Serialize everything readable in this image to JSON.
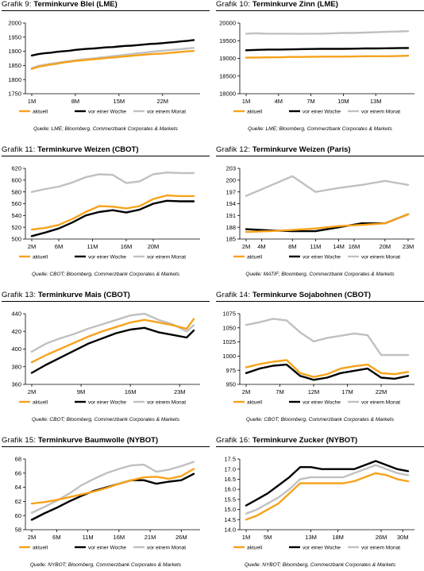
{
  "legend": {
    "current": "aktuell",
    "week": "vor einer Woche",
    "month": "vor einem Monat"
  },
  "colors": {
    "current": "#F7A21B",
    "week": "#000000",
    "month": "#C0C0C0"
  },
  "panels": [
    {
      "prefix": "Grafik 9:",
      "name": "Terminkurve Blei (LME)",
      "source": "Quelle: LME; Bloomberg, Commerzbank Corporates & Markets"
    },
    {
      "prefix": "Grafik 10:",
      "name": "Terminkurve Zinn (LME)",
      "source": "Quelle: LME; Bloomberg, Commerzbank Corporates & Markets"
    },
    {
      "prefix": "Grafik 11:",
      "name": "Terminkurve Weizen (CBOT)",
      "source": "Quelle: CBOT; Bloomberg, Commerzbank Corporates & Markets"
    },
    {
      "prefix": "Grafik 12:",
      "name": "Terminkurve Weizen (Paris)",
      "source": "Quelle: MATIF; Bloomberg, Commerzbank Corporates & Markets"
    },
    {
      "prefix": "Grafik 13:",
      "name": "Terminkurve Mais (CBOT)",
      "source": "Quelle: CBOT; Bloomberg, Commerzbank Corporates & Markets"
    },
    {
      "prefix": "Grafik 14:",
      "name": "Terminkurve Sojabohnen (CBOT)",
      "source": "Quelle: CBOT; Bloomberg, Commerzbank Corporates & Markets"
    },
    {
      "prefix": "Grafik 15:",
      "name": "Terminkurve Baumwolle (NYBOT)",
      "source": "Quelle: NYBOT; Bloomberg, Commerzbank Corporates & Markets"
    },
    {
      "prefix": "Grafik 16:",
      "name": "Terminkurve Zucker (NYBOT)",
      "source": "Quelle: NYBOT; Bloomberg, Commerzbank Corporates & Markets"
    }
  ],
  "chart_data": [
    {
      "type": "line",
      "title": "Terminkurve Blei (LME)",
      "x": [
        1,
        2,
        3,
        4,
        5,
        6,
        7,
        8,
        9,
        10,
        11,
        12,
        13,
        14,
        15,
        16,
        17,
        18,
        19,
        20,
        21,
        22,
        23,
        24,
        25,
        26,
        27
      ],
      "xticks": [
        1,
        8,
        15,
        22
      ],
      "xticklabels": [
        "1M",
        "8M",
        "15M",
        "22M"
      ],
      "ylim": [
        1750,
        2000
      ],
      "yticks": [
        1750,
        1800,
        1850,
        1900,
        1950,
        2000
      ],
      "ydec": 0,
      "series": [
        {
          "name": "aktuell",
          "key": "current",
          "values": [
            1838,
            1845,
            1849,
            1853,
            1856,
            1860,
            1863,
            1866,
            1868,
            1870,
            1872,
            1874,
            1876,
            1878,
            1880,
            1882,
            1884,
            1886,
            1888,
            1890,
            1891,
            1892,
            1894,
            1896,
            1898,
            1900,
            1901
          ]
        },
        {
          "name": "vor einer Woche",
          "key": "week",
          "values": [
            1885,
            1890,
            1893,
            1895,
            1898,
            1900,
            1902,
            1905,
            1907,
            1909,
            1910,
            1912,
            1914,
            1915,
            1917,
            1919,
            1920,
            1922,
            1924,
            1926,
            1927,
            1929,
            1931,
            1933,
            1935,
            1937,
            1940
          ]
        },
        {
          "name": "vor einem Monat",
          "key": "month",
          "values": [
            1840,
            1848,
            1852,
            1856,
            1859,
            1862,
            1865,
            1868,
            1871,
            1873,
            1875,
            1878,
            1880,
            1883,
            1885,
            1888,
            1890,
            1893,
            1895,
            1898,
            1900,
            1902,
            1904,
            1906,
            1908,
            1910,
            1912
          ]
        }
      ]
    },
    {
      "type": "line",
      "title": "Terminkurve Zinn (LME)",
      "x": [
        1,
        2,
        3,
        4,
        5,
        6,
        7,
        8,
        9,
        10,
        11,
        12,
        13,
        14,
        15,
        16
      ],
      "xticks": [
        1,
        4,
        7,
        10,
        13
      ],
      "xticklabels": [
        "1M",
        "4M",
        "7M",
        "10M",
        "13M"
      ],
      "ylim": [
        18000,
        20000
      ],
      "yticks": [
        18000,
        18500,
        19000,
        19500,
        20000
      ],
      "ydec": 0,
      "series": [
        {
          "name": "aktuell",
          "key": "current",
          "values": [
            19020,
            19025,
            19030,
            19030,
            19040,
            19040,
            19045,
            19050,
            19050,
            19050,
            19055,
            19060,
            19060,
            19060,
            19065,
            19075
          ]
        },
        {
          "name": "vor einer Woche",
          "key": "week",
          "values": [
            19230,
            19240,
            19250,
            19250,
            19255,
            19260,
            19265,
            19270,
            19270,
            19270,
            19275,
            19280,
            19280,
            19285,
            19290,
            19295
          ]
        },
        {
          "name": "vor einem Monat",
          "key": "month",
          "values": [
            19700,
            19710,
            19700,
            19700,
            19700,
            19695,
            19700,
            19700,
            19710,
            19720,
            19720,
            19730,
            19740,
            19750,
            19760,
            19770
          ]
        }
      ]
    },
    {
      "type": "line",
      "title": "Terminkurve Weizen (CBOT)",
      "x": [
        2,
        4,
        6,
        8,
        10,
        12,
        14,
        16,
        18,
        20,
        22,
        24,
        26
      ],
      "xticks": [
        2,
        6,
        11,
        16,
        20
      ],
      "xticklabels": [
        "2M",
        "6M",
        "11M",
        "16M",
        "20M"
      ],
      "ylim": [
        500,
        620
      ],
      "yticks": [
        500,
        520,
        540,
        560,
        580,
        600,
        620
      ],
      "ydec": 0,
      "series": [
        {
          "name": "aktuell",
          "key": "current",
          "values": [
            516,
            519,
            524,
            534,
            546,
            556,
            555,
            552,
            556,
            568,
            574,
            573,
            573
          ]
        },
        {
          "name": "vor einer Woche",
          "key": "week",
          "values": [
            505,
            511,
            518,
            528,
            540,
            546,
            549,
            545,
            550,
            560,
            565,
            564,
            564
          ]
        },
        {
          "name": "vor einem Monat",
          "key": "month",
          "values": [
            580,
            585,
            589,
            596,
            605,
            610,
            609,
            595,
            598,
            610,
            613,
            612,
            612
          ]
        }
      ]
    },
    {
      "type": "line",
      "title": "Terminkurve Weizen (Paris)",
      "x": [
        2,
        5,
        8,
        11,
        14,
        17,
        20,
        23
      ],
      "xticks": [
        2,
        4,
        8,
        11,
        14,
        16,
        20,
        23
      ],
      "xticklabels": [
        "2M",
        "4M",
        "8M",
        "11M",
        "14M",
        "16M",
        "20M",
        "23M"
      ],
      "ylim": [
        185,
        203
      ],
      "yticks": [
        185,
        188,
        191,
        194,
        197,
        200,
        203
      ],
      "ydec": 0,
      "series": [
        {
          "name": "aktuell",
          "key": "current",
          "values": [
            186.8,
            187.0,
            187.3,
            187.7,
            188.3,
            188.6,
            189.0,
            191.3
          ]
        },
        {
          "name": "vor einer Woche",
          "key": "week",
          "values": [
            187.5,
            187.2,
            187.0,
            187.0,
            188.0,
            189.0,
            189.0,
            191.3
          ]
        },
        {
          "name": "vor einem Monat",
          "key": "month",
          "values": [
            196.0,
            198.5,
            201.0,
            197.0,
            198.0,
            198.8,
            199.8,
            198.8
          ]
        }
      ]
    },
    {
      "type": "line",
      "title": "Terminkurve Mais (CBOT)",
      "x": [
        2,
        4,
        6,
        8,
        10,
        12,
        14,
        16,
        18,
        20,
        22,
        24,
        25
      ],
      "xticks": [
        2,
        9,
        16,
        23
      ],
      "xticklabels": [
        "2M",
        "9M",
        "16M",
        "23M"
      ],
      "ylim": [
        360,
        440
      ],
      "yticks": [
        360,
        380,
        400,
        420,
        440
      ],
      "ydec": 0,
      "series": [
        {
          "name": "aktuell",
          "key": "current",
          "values": [
            385,
            393,
            400,
            407,
            414,
            420,
            425,
            430,
            433,
            430,
            427,
            423,
            434
          ]
        },
        {
          "name": "vor einer Woche",
          "key": "week",
          "values": [
            373,
            382,
            390,
            398,
            406,
            412,
            418,
            422,
            424,
            419,
            416,
            413,
            421
          ]
        },
        {
          "name": "vor einem Monat",
          "key": "month",
          "values": [
            397,
            406,
            412,
            417,
            423,
            428,
            433,
            438,
            440,
            433,
            428,
            420,
            427
          ]
        }
      ]
    },
    {
      "type": "line",
      "title": "Terminkurve Sojabohnen (CBOT)",
      "x": [
        2,
        4,
        6,
        8,
        10,
        12,
        14,
        16,
        18,
        20,
        22,
        24,
        26
      ],
      "xticks": [
        2,
        7,
        12,
        17,
        22
      ],
      "xticklabels": [
        "2M",
        "7M",
        "12M",
        "17M",
        "22M"
      ],
      "ylim": [
        950,
        1075
      ],
      "yticks": [
        950,
        975,
        1000,
        1025,
        1050,
        1075
      ],
      "ydec": 0,
      "series": [
        {
          "name": "aktuell",
          "key": "current",
          "values": [
            980,
            986,
            990,
            993,
            970,
            963,
            968,
            978,
            982,
            985,
            970,
            968,
            972
          ]
        },
        {
          "name": "vor einer Woche",
          "key": "week",
          "values": [
            970,
            978,
            983,
            985,
            965,
            958,
            962,
            970,
            974,
            978,
            962,
            960,
            965
          ]
        },
        {
          "name": "vor einem Monat",
          "key": "month",
          "values": [
            1055,
            1060,
            1066,
            1063,
            1042,
            1026,
            1032,
            1036,
            1040,
            1037,
            1002,
            1002,
            1002
          ]
        }
      ]
    },
    {
      "type": "line",
      "title": "Terminkurve Baumwolle (NYBOT)",
      "x": [
        2,
        4,
        6,
        8,
        10,
        12,
        14,
        16,
        18,
        20,
        22,
        24,
        26,
        28
      ],
      "xticks": [
        2,
        6,
        11,
        16,
        21,
        26
      ],
      "xticklabels": [
        "2M",
        "6M",
        "11M",
        "16M",
        "21M",
        "26M"
      ],
      "ylim": [
        58,
        68
      ],
      "yticks": [
        58,
        60,
        62,
        64,
        66,
        68
      ],
      "ydec": 0,
      "series": [
        {
          "name": "aktuell",
          "key": "current",
          "values": [
            61.7,
            61.9,
            62.2,
            62.6,
            63.0,
            63.4,
            63.9,
            64.5,
            65.0,
            65.4,
            65.5,
            65.2,
            65.6,
            66.6
          ]
        },
        {
          "name": "vor einer Woche",
          "key": "week",
          "values": [
            59.4,
            60.3,
            61.1,
            62.0,
            62.8,
            63.5,
            64.0,
            64.5,
            65.0,
            65.0,
            64.5,
            64.8,
            65.0,
            65.9
          ]
        },
        {
          "name": "vor einem Monat",
          "key": "month",
          "values": [
            60.4,
            61.2,
            62.1,
            63.1,
            64.3,
            65.2,
            66.0,
            66.6,
            67.1,
            67.2,
            66.2,
            66.5,
            67.0,
            67.6
          ]
        }
      ]
    },
    {
      "type": "line",
      "title": "Terminkurve Zucker (NYBOT)",
      "x": [
        1,
        3,
        5,
        7,
        9,
        11,
        13,
        15,
        17,
        19,
        21,
        23,
        25,
        27,
        29,
        31
      ],
      "xticks": [
        1,
        5,
        13,
        18,
        26,
        30
      ],
      "xticklabels": [
        "1M",
        "5M",
        "13M",
        "18M",
        "26M",
        "30M"
      ],
      "ylim": [
        14.0,
        17.5
      ],
      "yticks": [
        14.0,
        14.5,
        15.0,
        15.5,
        16.0,
        16.5,
        17.0,
        17.5
      ],
      "ydec": 1,
      "series": [
        {
          "name": "aktuell",
          "key": "current",
          "values": [
            14.5,
            14.7,
            15.0,
            15.3,
            15.8,
            16.3,
            16.3,
            16.3,
            16.3,
            16.3,
            16.4,
            16.6,
            16.8,
            16.7,
            16.5,
            16.4
          ]
        },
        {
          "name": "vor einer Woche",
          "key": "week",
          "values": [
            15.2,
            15.5,
            15.8,
            16.2,
            16.6,
            17.1,
            17.1,
            17.0,
            17.0,
            17.0,
            17.0,
            17.2,
            17.4,
            17.2,
            17.0,
            16.9
          ]
        },
        {
          "name": "vor einem Monat",
          "key": "month",
          "values": [
            14.8,
            15.0,
            15.3,
            15.6,
            16.0,
            16.5,
            16.6,
            16.6,
            16.6,
            16.6,
            16.8,
            17.0,
            17.2,
            17.0,
            16.8,
            16.7
          ]
        }
      ]
    }
  ]
}
